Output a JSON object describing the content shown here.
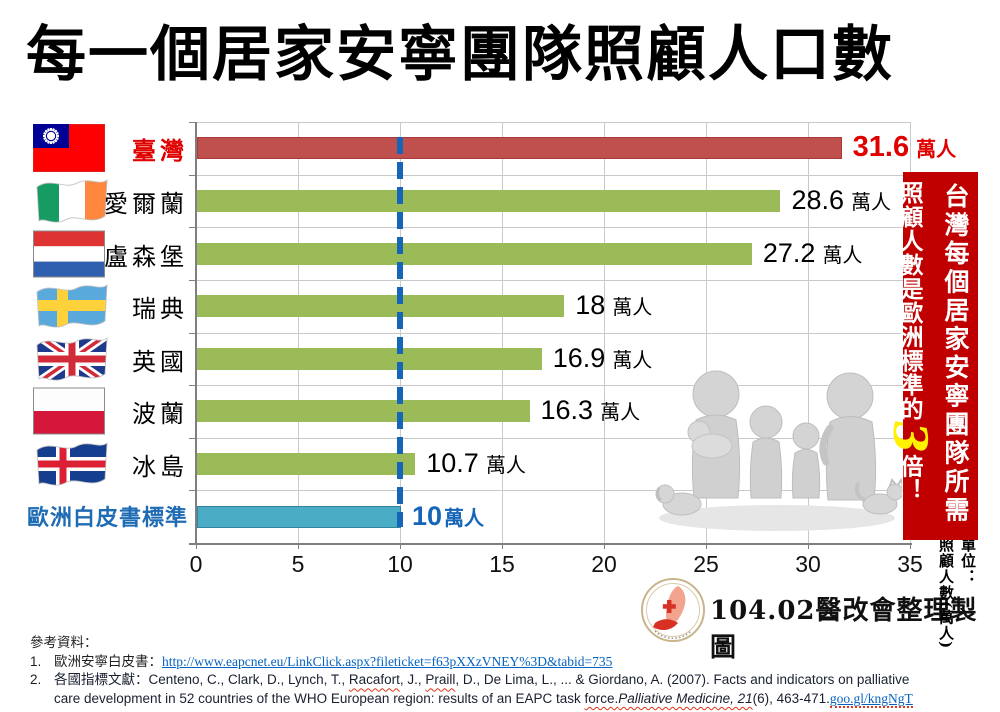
{
  "chart_data": {
    "type": "bar",
    "orientation": "horizontal",
    "title": "每一個居家安寧團隊照顧人口數",
    "xlabel": "",
    "ylabel": "",
    "unit_col1": "單位：",
    "unit_col2": "照顧人數(萬人)",
    "xlim": [
      0,
      35
    ],
    "x_ticks": [
      0,
      5,
      10,
      15,
      20,
      25,
      30,
      35
    ],
    "grid": true,
    "reference_line": {
      "value": 10,
      "color": "#1565B8",
      "style": "dashed"
    },
    "rows": [
      {
        "country": "臺灣",
        "flag": "taiwan",
        "value": 31.6,
        "value_text": "31.6",
        "unit": "萬人",
        "gap": true,
        "bar_color": "#C0504D",
        "bar_border": "#A93A38",
        "label_color": "#E00000",
        "label_bold": true,
        "value_color": "#E00000",
        "value_bold": true,
        "value_size": 29
      },
      {
        "country": "愛爾蘭",
        "flag": "ireland",
        "value": 28.6,
        "value_text": "28.6",
        "unit": "萬人",
        "gap": true,
        "bar_color": "#9BBB59",
        "bar_border": null,
        "label_color": "#000000",
        "label_bold": false,
        "value_color": "#000000",
        "value_bold": false,
        "value_size": 27
      },
      {
        "country": "盧森堡",
        "flag": "luxembourg",
        "value": 27.2,
        "value_text": "27.2",
        "unit": "萬人",
        "gap": true,
        "bar_color": "#9BBB59",
        "bar_border": null,
        "label_color": "#000000",
        "label_bold": false,
        "value_color": "#000000",
        "value_bold": false,
        "value_size": 27
      },
      {
        "country": "瑞典",
        "flag": "sweden",
        "value": 18,
        "value_text": "18",
        "unit": "萬人",
        "gap": true,
        "bar_color": "#9BBB59",
        "bar_border": null,
        "label_color": "#000000",
        "label_bold": false,
        "value_color": "#000000",
        "value_bold": false,
        "value_size": 27
      },
      {
        "country": "英國",
        "flag": "uk",
        "value": 16.9,
        "value_text": "16.9",
        "unit": "萬人",
        "gap": true,
        "bar_color": "#9BBB59",
        "bar_border": null,
        "label_color": "#000000",
        "label_bold": false,
        "value_color": "#000000",
        "value_bold": false,
        "value_size": 27
      },
      {
        "country": "波蘭",
        "flag": "poland",
        "value": 16.3,
        "value_text": "16.3",
        "unit": "萬人",
        "gap": true,
        "bar_color": "#9BBB59",
        "bar_border": null,
        "label_color": "#000000",
        "label_bold": false,
        "value_color": "#000000",
        "value_bold": false,
        "value_size": 27
      },
      {
        "country": "冰島",
        "flag": "iceland",
        "value": 10.7,
        "value_text": "10.7",
        "unit": "萬人",
        "gap": true,
        "bar_color": "#9BBB59",
        "bar_border": null,
        "label_color": "#000000",
        "label_bold": false,
        "value_color": "#000000",
        "value_bold": false,
        "value_size": 27
      },
      {
        "country": "歐洲白皮書標準",
        "flag": null,
        "value": 10,
        "value_text": "10",
        "unit": "萬人",
        "gap": false,
        "bar_color": "#4BACC6",
        "bar_border": "#31849B",
        "label_color": "#1F6CB5",
        "label_bold": true,
        "value_color": "#1565B8",
        "value_bold": true,
        "value_size": 27
      }
    ]
  },
  "sidebar": {
    "line1": "台灣每個居家安寧團隊所需",
    "line2_prefix": "照顧人數是歐洲標準的",
    "big_number": "3",
    "line2_suffix": "倍！",
    "background": "#C00000",
    "highlight_color": "#FFF100"
  },
  "footer": {
    "credit": "104.02醫改會整理製圖",
    "logo": "taiwan-healthcare-reform-foundation-seal"
  },
  "references": {
    "heading": "參考資料：",
    "item1_num": "1.",
    "item1_label": "歐洲安寧白皮書：",
    "item1_link": "http://www.eapcnet.eu/LinkClick.aspx?fileticket=f63pXXzVNEY%3D&tabid=735",
    "item2_num": "2.",
    "item2_label": "各國指標文獻：",
    "item2_text_a": "Centeno, C., Clark, D., Lynch, T., ",
    "item2_name1": "Racafort",
    "item2_text_b": ", J., ",
    "item2_name2": "Praill",
    "item2_text_c": ", D., De Lima, L., ... & Giordano, A. (2007). Facts and indicators on palliative",
    "item2_line2_a": "care development in 52 countries of the WHO European region: results of an EAPC task ",
    "item2_force": "force.",
    "item2_journal": "Palliative Medicine, 21",
    "item2_issue": "(6), 463-471.",
    "item2_link": "goo.gl/kngNgT"
  }
}
